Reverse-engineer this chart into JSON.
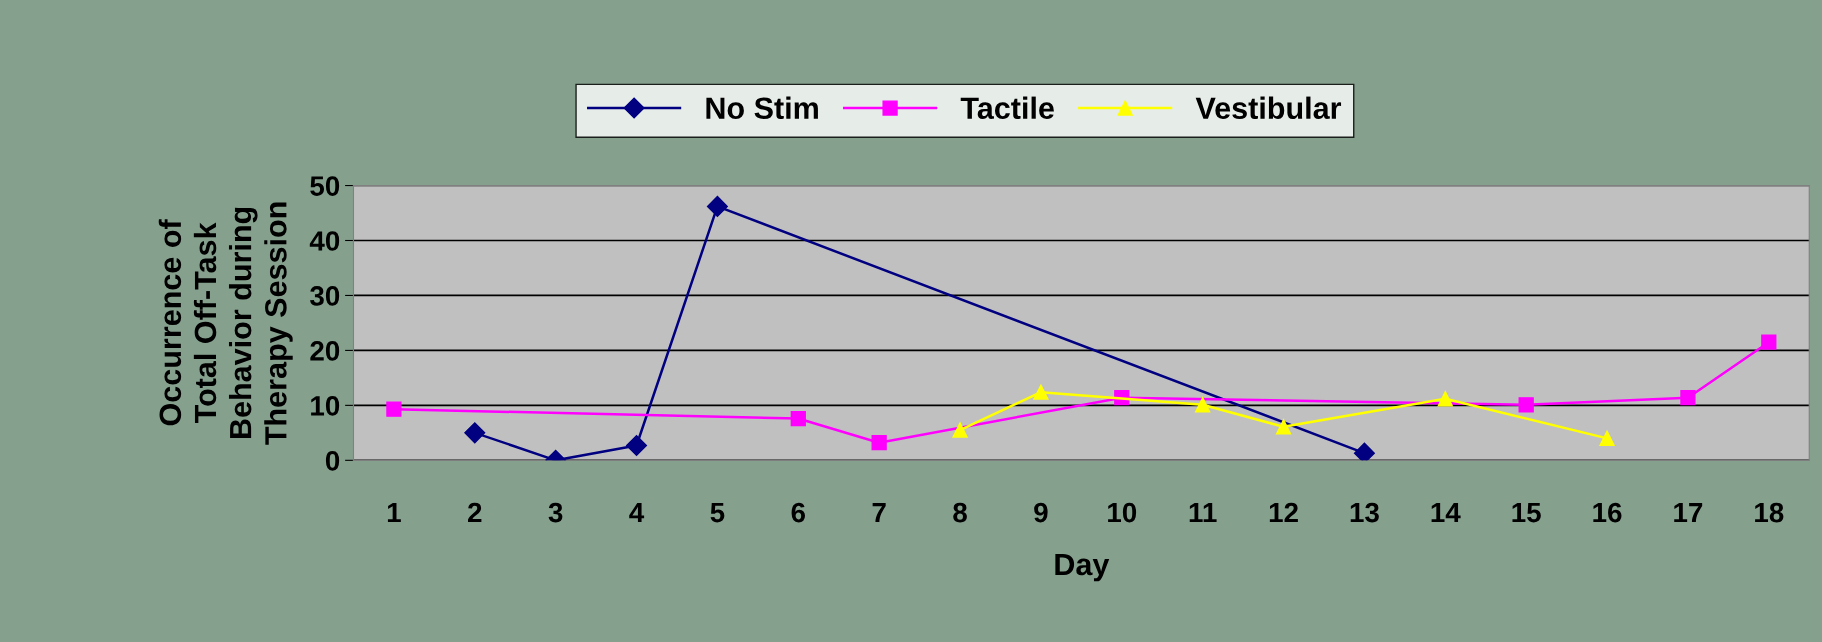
{
  "chart_data": {
    "type": "line",
    "xlabel": "Day",
    "ylabel": "Occurrence of\nTotal Off-Task\nBehavior during\nTherapy Session",
    "xlim": [
      0.5,
      18.5
    ],
    "xticks": [
      1,
      2,
      3,
      4,
      5,
      6,
      7,
      8,
      9,
      10,
      11,
      12,
      13,
      14,
      15,
      16,
      17,
      18
    ],
    "ylim": [
      0,
      50
    ],
    "yticks": [
      0,
      10,
      20,
      30,
      40,
      50
    ],
    "grid": "y",
    "legend": "top",
    "series": [
      {
        "name": "No Stim",
        "color": "#000080",
        "marker": "diamond",
        "x": [
          2,
          3,
          4,
          5,
          13
        ],
        "values": [
          5,
          0,
          2.7,
          46.2,
          1.3
        ]
      },
      {
        "name": "Tactile",
        "color": "#ff00ff",
        "marker": "square",
        "x": [
          1,
          6,
          7,
          10,
          15,
          17,
          18
        ],
        "values": [
          9.3,
          7.6,
          3.2,
          11.4,
          10.1,
          11.4,
          21.5
        ]
      },
      {
        "name": "Vestibular",
        "color": "#ffff00",
        "marker": "triangle",
        "x": [
          8,
          9,
          11,
          12,
          14,
          16
        ],
        "values": [
          5.5,
          12.4,
          10.1,
          6.1,
          11.2,
          4
        ]
      }
    ]
  }
}
